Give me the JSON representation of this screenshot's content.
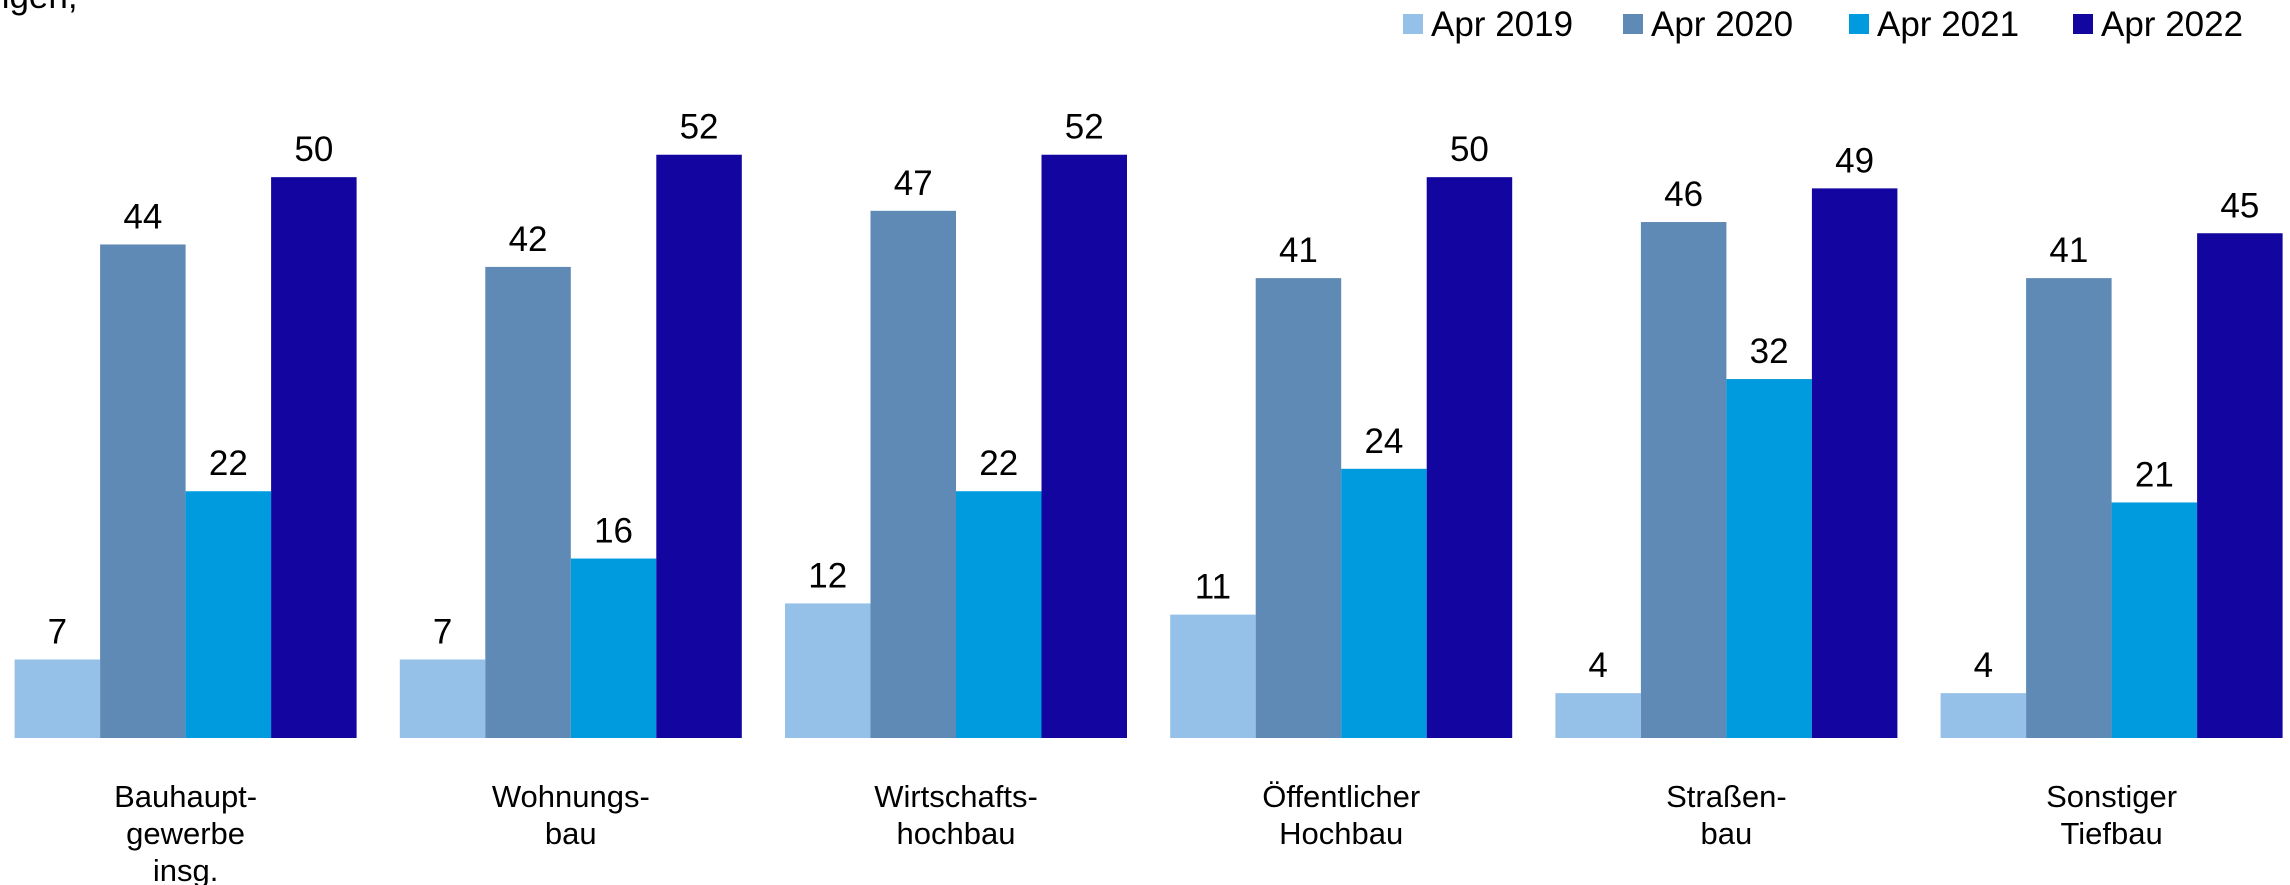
{
  "chart_data": {
    "type": "bar",
    "title": "ngen,",
    "categories": [
      "Bauhaupt-\ngewerbe\ninsg.",
      "Wohnungs-\nbau",
      "Wirtschafts-\nhochbau",
      "Öffentlicher\nHochbau",
      "Straßen-\nbau",
      "Sonstiger\nTiefbau"
    ],
    "series": [
      {
        "name": "Apr 2019",
        "color": "#95c1e8",
        "values": [
          7,
          7,
          12,
          11,
          4,
          4
        ]
      },
      {
        "name": "Apr 2020",
        "color": "#5f8ab5",
        "values": [
          44,
          42,
          47,
          41,
          46,
          41
        ]
      },
      {
        "name": "Apr 2021",
        "color": "#009ade",
        "values": [
          22,
          16,
          22,
          24,
          32,
          21
        ]
      },
      {
        "name": "Apr 2022",
        "color": "#1205a0",
        "values": [
          50,
          52,
          52,
          50,
          49,
          45
        ]
      }
    ],
    "ylim": [
      0,
      60
    ],
    "legend": "top-right"
  }
}
